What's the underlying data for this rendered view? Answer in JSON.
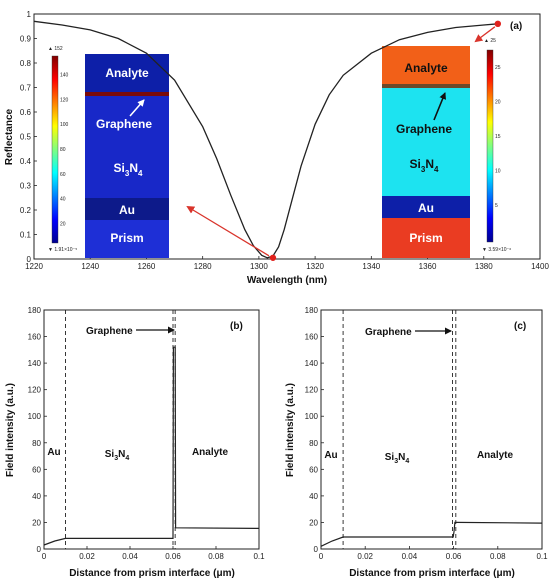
{
  "colors": {
    "curve": "#222222",
    "marker": "#e0211c",
    "arrow": "#d9342b",
    "layer_dark_blue": "#0d1fa8",
    "layer_mid_blue": "#1828c8",
    "layer_light_blue": "#1e2fd6",
    "layer_cyan": "#1de3f0",
    "layer_orange": "#f26018",
    "layer_red": "#ea3c22",
    "graphene_dark": "#7a0a0a"
  },
  "chart_data": [
    {
      "id": "a",
      "type": "line",
      "panel_tag": "(a)",
      "xlabel": "Wavelength (nm)",
      "ylabel": "Reflectance",
      "xlim": [
        1220,
        1400
      ],
      "ylim": [
        0,
        1
      ],
      "xticks": [
        1220,
        1240,
        1260,
        1280,
        1300,
        1320,
        1340,
        1360,
        1380,
        1400
      ],
      "yticks": [
        0,
        0.1,
        0.2,
        0.3,
        0.4,
        0.5,
        0.6,
        0.7,
        0.8,
        0.9,
        1
      ],
      "ytick_labels": [
        "0",
        "0.1",
        "0.2",
        "0.3",
        "0.4",
        "0.5",
        "0.6",
        "0.7",
        "0.8",
        "0.9",
        "1"
      ],
      "series": [
        {
          "x": [
            1220,
            1230,
            1240,
            1250,
            1260,
            1270,
            1280,
            1285,
            1290,
            1295,
            1298,
            1301,
            1303,
            1305,
            1307,
            1309,
            1312,
            1315,
            1320,
            1325,
            1330,
            1340,
            1350,
            1360,
            1370,
            1380,
            1385
          ],
          "y": [
            0.97,
            0.955,
            0.935,
            0.9,
            0.84,
            0.73,
            0.54,
            0.41,
            0.26,
            0.12,
            0.055,
            0.015,
            0.005,
            0.012,
            0.05,
            0.12,
            0.25,
            0.38,
            0.55,
            0.67,
            0.75,
            0.84,
            0.895,
            0.925,
            0.945,
            0.955,
            0.96
          ]
        }
      ],
      "markers": [
        {
          "x": 1305,
          "y": 0.005
        },
        {
          "x": 1385,
          "y": 0.96
        }
      ],
      "insets": [
        {
          "id": "left-inset",
          "colorbar_max": "▲ 152",
          "colorbar_min": "▼ 1.91×10⁻⁵",
          "colorbar_ticks": [
            "140",
            "120",
            "100",
            "80",
            "60",
            "40",
            "20"
          ],
          "layers": {
            "analyte": "Analyte",
            "graphene": "Graphene",
            "si3n4": "Si",
            "si3n4_sub": "3",
            "si3n4_n": "N",
            "si3n4_sub2": "4",
            "au": "Au",
            "prism": "Prism"
          }
        },
        {
          "id": "right-inset",
          "colorbar_max": "▲ 25",
          "colorbar_min": "▼ 3.59×10⁻⁶",
          "colorbar_ticks": [
            "25",
            "20",
            "15",
            "10",
            "5"
          ],
          "layers": {
            "analyte": "Analyte",
            "graphene": "Graphene",
            "si3n4": "Si",
            "si3n4_sub": "3",
            "si3n4_n": "N",
            "si3n4_sub2": "4",
            "au": "Au",
            "prism": "Prism"
          }
        }
      ]
    },
    {
      "id": "b",
      "type": "line",
      "panel_tag": "(b)",
      "xlabel": "Distance from prism interface (μm)",
      "ylabel": "Field intensity (a.u.)",
      "xlim": [
        0,
        0.1
      ],
      "ylim": [
        0,
        180
      ],
      "xticks": [
        0,
        0.02,
        0.04,
        0.06,
        0.08,
        0.1
      ],
      "xtick_labels": [
        "0",
        "0.02",
        "0.04",
        "0.06",
        "0.08",
        "0.1"
      ],
      "yticks": [
        0,
        20,
        40,
        60,
        80,
        100,
        120,
        140,
        160,
        180
      ],
      "vlines": [
        0.01,
        0.06,
        0.061
      ],
      "regions": {
        "au": "Au",
        "si": "Si",
        "si_sub": "3",
        "n": "N",
        "n_sub": "4",
        "analyte": "Analyte"
      },
      "annotation": "Graphene",
      "series": [
        {
          "x": [
            0,
            0.005,
            0.01,
            0.06,
            0.0602,
            0.0608,
            0.061,
            0.0612,
            0.1
          ],
          "y": [
            3,
            6,
            8,
            8,
            152,
            152,
            152,
            16,
            15.5
          ]
        }
      ]
    },
    {
      "id": "c",
      "type": "line",
      "panel_tag": "(c)",
      "xlabel": "Distance from prism interface (μm)",
      "ylabel": "Field intensity (a.u.)",
      "xlim": [
        0,
        0.1
      ],
      "ylim": [
        0,
        180
      ],
      "xticks": [
        0,
        0.02,
        0.04,
        0.06,
        0.08,
        0.1
      ],
      "xtick_labels": [
        "0",
        "0.02",
        "0.04",
        "0.06",
        "0.08",
        "0.1"
      ],
      "yticks": [
        0,
        20,
        40,
        60,
        80,
        100,
        120,
        140,
        160,
        180
      ],
      "vlines": [
        0.01,
        0.0595,
        0.061
      ],
      "regions": {
        "au": "Au",
        "si": "Si",
        "si_sub": "3",
        "n": "N",
        "n_sub": "4",
        "analyte": "Analyte"
      },
      "annotation": "Graphene",
      "series": [
        {
          "x": [
            0,
            0.005,
            0.01,
            0.0598,
            0.0602,
            0.0606,
            0.061,
            0.1
          ],
          "y": [
            2,
            6,
            9,
            9,
            13,
            20,
            20,
            19.5
          ]
        }
      ]
    }
  ]
}
